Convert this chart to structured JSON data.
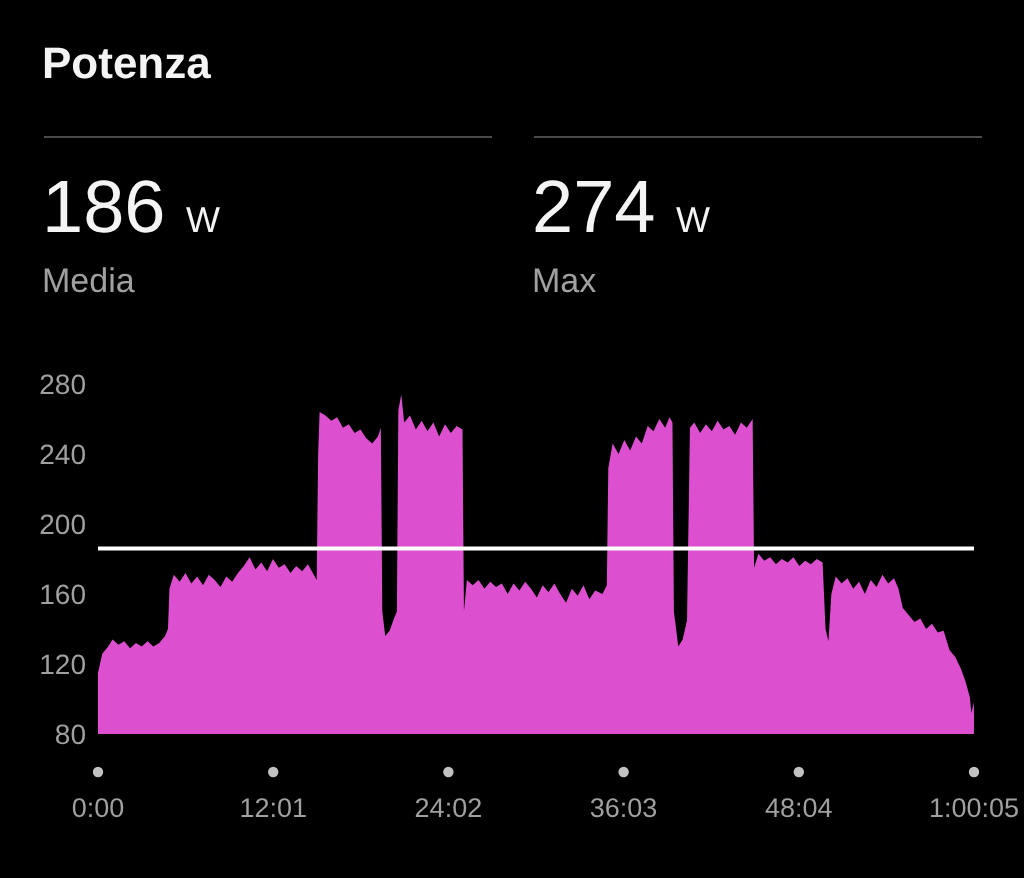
{
  "chart_data": {
    "type": "area",
    "title": "Potenza",
    "annotations": [
      "186 W",
      "Media",
      "274 W",
      "Max"
    ],
    "x": [
      0.0,
      0.3,
      0.7,
      1.0,
      1.4,
      1.8,
      2.2,
      2.6,
      3.0,
      3.4,
      3.8,
      4.2,
      4.6,
      4.8,
      4.9,
      5.2,
      5.6,
      6.0,
      6.4,
      6.8,
      7.2,
      7.6,
      8.0,
      8.4,
      8.8,
      9.2,
      9.6,
      10.0,
      10.4,
      10.8,
      11.2,
      11.6,
      12.0,
      12.4,
      12.8,
      13.2,
      13.6,
      14.0,
      14.4,
      14.8,
      15.0,
      15.1,
      15.2,
      15.6,
      16.0,
      16.4,
      16.8,
      17.2,
      17.6,
      18.0,
      18.4,
      18.8,
      19.2,
      19.4,
      19.5,
      19.7,
      20.0,
      20.3,
      20.5,
      20.6,
      20.8,
      21.0,
      21.4,
      21.8,
      22.2,
      22.6,
      23.0,
      23.4,
      23.8,
      24.2,
      24.6,
      25.0,
      25.1,
      25.3,
      25.7,
      26.1,
      26.5,
      26.9,
      27.3,
      27.7,
      28.1,
      28.5,
      28.9,
      29.3,
      29.7,
      30.1,
      30.5,
      30.9,
      31.3,
      31.7,
      32.1,
      32.5,
      32.9,
      33.3,
      33.7,
      34.1,
      34.6,
      34.9,
      35.0,
      35.3,
      35.7,
      36.1,
      36.5,
      36.9,
      37.3,
      37.7,
      38.1,
      38.5,
      38.9,
      39.2,
      39.4,
      39.5,
      39.8,
      40.1,
      40.4,
      40.6,
      40.9,
      41.3,
      41.7,
      42.1,
      42.5,
      42.9,
      43.3,
      43.7,
      44.1,
      44.5,
      44.9,
      45.0,
      45.3,
      45.7,
      46.1,
      46.5,
      46.9,
      47.3,
      47.7,
      48.1,
      48.5,
      48.9,
      49.3,
      49.7,
      49.9,
      50.1,
      50.3,
      50.6,
      51.0,
      51.4,
      51.8,
      52.2,
      52.6,
      53.0,
      53.4,
      53.8,
      54.2,
      54.6,
      54.9,
      55.2,
      55.6,
      56.0,
      56.4,
      56.8,
      57.2,
      57.6,
      58.0,
      58.4,
      58.8,
      59.2,
      59.5,
      59.8,
      59.9,
      60.08
    ],
    "values": [
      115,
      126,
      130,
      134,
      131,
      133,
      129,
      132,
      130,
      133,
      130,
      132,
      136,
      140,
      163,
      171,
      167,
      172,
      166,
      170,
      165,
      171,
      168,
      164,
      170,
      167,
      172,
      176,
      181,
      174,
      178,
      173,
      180,
      175,
      177,
      172,
      176,
      173,
      177,
      171,
      168,
      240,
      264,
      262,
      259,
      261,
      255,
      257,
      252,
      254,
      249,
      246,
      250,
      255,
      150,
      136,
      139,
      146,
      150,
      265,
      274,
      258,
      262,
      254,
      259,
      253,
      258,
      250,
      257,
      252,
      256,
      254,
      150,
      168,
      165,
      168,
      163,
      167,
      164,
      166,
      160,
      166,
      162,
      167,
      163,
      158,
      165,
      161,
      166,
      160,
      155,
      163,
      159,
      165,
      157,
      162,
      160,
      165,
      232,
      246,
      240,
      248,
      242,
      250,
      246,
      256,
      253,
      260,
      255,
      261,
      258,
      150,
      130,
      134,
      145,
      255,
      258,
      252,
      257,
      253,
      259,
      254,
      256,
      251,
      258,
      255,
      260,
      175,
      183,
      179,
      181,
      177,
      180,
      178,
      181,
      176,
      179,
      177,
      180,
      178,
      140,
      133,
      160,
      170,
      166,
      169,
      163,
      167,
      160,
      168,
      164,
      171,
      166,
      169,
      163,
      152,
      148,
      144,
      146,
      140,
      143,
      138,
      139,
      128,
      124,
      117,
      110,
      101,
      92,
      98
    ],
    "color": "#dc50cf",
    "xlim": [
      0,
      60.083
    ],
    "xticks": [
      {
        "value": 0,
        "label": "0:00"
      },
      {
        "value": 12.017,
        "label": "12:01"
      },
      {
        "value": 24.033,
        "label": "24:02"
      },
      {
        "value": 36.05,
        "label": "36:03"
      },
      {
        "value": 48.067,
        "label": "48:04"
      },
      {
        "value": 60.083,
        "label": "1:00:05"
      }
    ],
    "ylim": [
      80,
      280
    ],
    "yticks": [
      80,
      120,
      160,
      200,
      240,
      280
    ],
    "ref_lines": [
      {
        "axis": "y",
        "value": 186,
        "color": "#ffffff"
      }
    ]
  }
}
